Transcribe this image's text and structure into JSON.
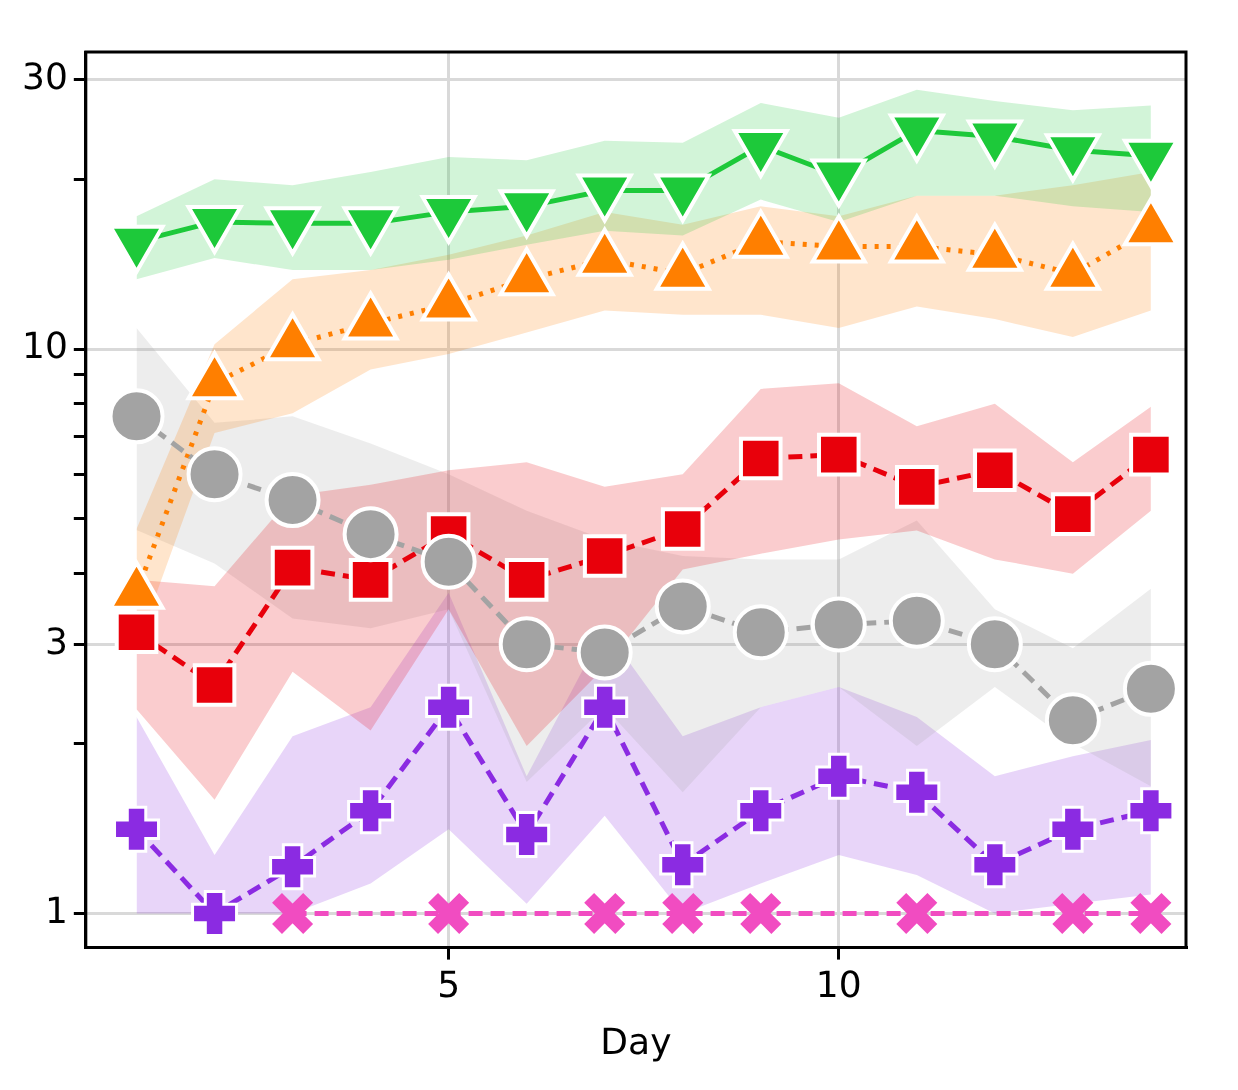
{
  "chart_data": {
    "type": "line",
    "xlabel": "Day",
    "x": [
      1,
      2,
      3,
      4,
      5,
      6,
      7,
      8,
      9,
      10,
      11,
      12,
      13,
      14
    ],
    "xlim": [
      0.35,
      14.45
    ],
    "xticks": [
      5,
      10
    ],
    "ylim": [
      0.87,
      33.6
    ],
    "log": true,
    "yticks": [
      1,
      {
        "value": 2,
        "label": null
      },
      3,
      {
        "value": 4,
        "label": null
      },
      {
        "value": 5,
        "label": null
      },
      {
        "value": 6,
        "label": null
      },
      {
        "value": 7,
        "label": null
      },
      {
        "value": 8,
        "label": null
      },
      {
        "value": 9,
        "label": null
      },
      10,
      {
        "value": 20,
        "label": null
      },
      30
    ],
    "grid": true,
    "legend": false,
    "series": [
      {
        "color": "#1dc93a",
        "marker": "triangle_down",
        "line_style": "solid",
        "values": [
          15.5,
          16.8,
          16.7,
          16.7,
          17.5,
          17.9,
          19.1,
          19.1,
          22.9,
          20.3,
          24.4,
          23.8,
          22.5,
          22.0
        ],
        "lower": [
          13.3,
          14.5,
          13.8,
          13.8,
          14.4,
          15.3,
          16.2,
          15.9,
          18.4,
          16.8,
          18.7,
          18.7,
          17.9,
          17.5
        ],
        "upper": [
          17.2,
          20.0,
          19.5,
          20.6,
          21.9,
          21.6,
          23.4,
          23.2,
          27.3,
          25.7,
          28.8,
          27.5,
          26.5,
          27.0
        ]
      },
      {
        "color": "#ff7f00",
        "marker": "triangle",
        "line_style": "dotted",
        "values": [
          3.7,
          8.7,
          10.2,
          11.1,
          12.0,
          13.3,
          14.4,
          13.6,
          15.5,
          15.2,
          15.2,
          14.7,
          13.6,
          16.3
        ],
        "lower": [
          2.95,
          7.1,
          7.7,
          9.2,
          9.8,
          10.7,
          11.7,
          11.5,
          11.5,
          10.9,
          11.9,
          11.3,
          10.5,
          11.7
        ],
        "upper": [
          4.8,
          10.2,
          13.3,
          13.8,
          14.7,
          15.9,
          17.5,
          16.6,
          17.9,
          17.2,
          18.7,
          18.7,
          19.5,
          20.6
        ]
      },
      {
        "color": "#e8000b",
        "marker": "square",
        "line_style": "dashed",
        "values": [
          3.15,
          2.54,
          4.1,
          3.9,
          4.7,
          3.9,
          4.3,
          4.8,
          6.4,
          6.5,
          5.7,
          6.1,
          5.1,
          6.5
        ],
        "lower": [
          2.3,
          1.59,
          2.68,
          2.11,
          3.46,
          1.98,
          2.73,
          4.07,
          4.34,
          4.6,
          4.77,
          4.24,
          4.0,
          5.17
        ],
        "upper": [
          3.9,
          3.8,
          5.5,
          5.75,
          6.1,
          6.3,
          5.7,
          6.0,
          8.5,
          8.7,
          7.3,
          8.0,
          6.3,
          7.9
        ]
      },
      {
        "color": "#a3a3a3",
        "marker": "circle",
        "line_style": "dashed",
        "values": [
          7.6,
          6.0,
          5.4,
          4.7,
          4.2,
          3.0,
          2.9,
          3.5,
          3.15,
          3.25,
          3.3,
          3.0,
          2.2,
          2.5
        ],
        "lower": [
          4.78,
          4.17,
          3.33,
          3.2,
          3.46,
          1.71,
          2.32,
          1.64,
          2.32,
          2.52,
          1.98,
          2.52,
          2.0,
          1.68
        ],
        "upper": [
          10.9,
          7.4,
          7.6,
          6.8,
          6.0,
          5.17,
          4.6,
          4.3,
          4.24,
          4.24,
          4.97,
          3.46,
          2.95,
          3.76
        ]
      },
      {
        "color": "#8b2be2",
        "marker": "cross",
        "line_style": "dashed",
        "values": [
          1.41,
          1.0,
          1.21,
          1.52,
          2.32,
          1.38,
          2.32,
          1.22,
          1.52,
          1.75,
          1.64,
          1.22,
          1.41,
          1.52
        ],
        "lower": [
          1.0,
          1.0,
          1.0,
          1.13,
          1.41,
          1.04,
          1.49,
          1.0,
          1.13,
          1.27,
          1.17,
          1.0,
          1.04,
          1.08
        ],
        "upper": [
          2.23,
          1.27,
          2.06,
          2.32,
          3.7,
          1.75,
          3.2,
          2.06,
          2.32,
          2.52,
          2.23,
          1.75,
          1.9,
          2.03
        ]
      },
      {
        "color": "#f14cc1",
        "marker": "x",
        "line_style": "dashed",
        "values": [
          null,
          null,
          1,
          null,
          1,
          null,
          1,
          1,
          1,
          null,
          1,
          null,
          1,
          1
        ]
      }
    ]
  }
}
